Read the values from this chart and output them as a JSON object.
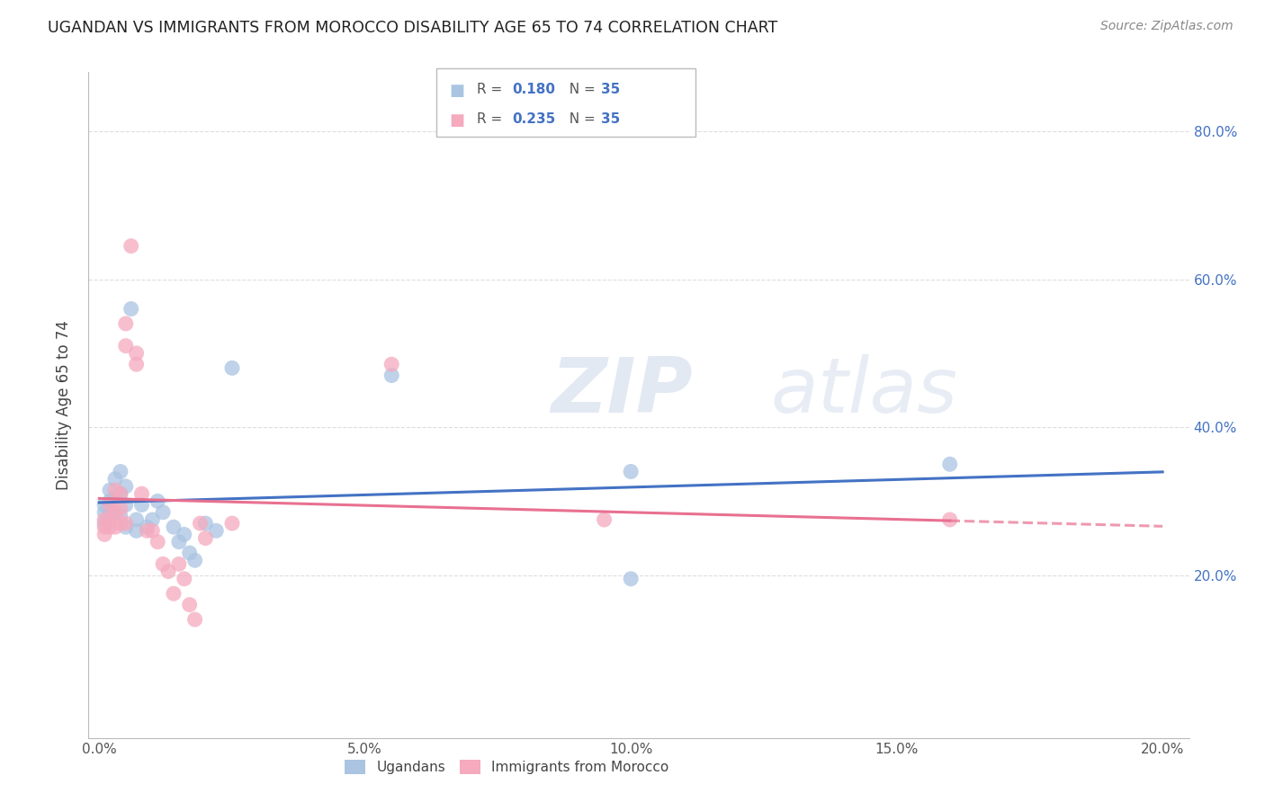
{
  "title": "UGANDAN VS IMMIGRANTS FROM MOROCCO DISABILITY AGE 65 TO 74 CORRELATION CHART",
  "source": "Source: ZipAtlas.com",
  "ylabel": "Disability Age 65 to 74",
  "xlim": [
    -0.002,
    0.205
  ],
  "ylim": [
    -0.02,
    0.88
  ],
  "x_tick_labels": [
    "0.0%",
    "",
    "",
    "",
    "",
    "5.0%",
    "",
    "",
    "",
    "",
    "10.0%",
    "",
    "",
    "",
    "",
    "15.0%",
    "",
    "",
    "",
    "",
    "20.0%"
  ],
  "x_tick_positions": [
    0.0,
    0.01,
    0.02,
    0.03,
    0.04,
    0.05,
    0.06,
    0.07,
    0.08,
    0.09,
    0.1,
    0.11,
    0.12,
    0.13,
    0.14,
    0.15,
    0.16,
    0.17,
    0.18,
    0.19,
    0.2
  ],
  "y_tick_labels": [
    "20.0%",
    "40.0%",
    "60.0%",
    "80.0%"
  ],
  "y_tick_positions": [
    0.2,
    0.4,
    0.6,
    0.8
  ],
  "ugandan_R": "0.180",
  "ugandan_N": "35",
  "morocco_R": "0.235",
  "morocco_N": "35",
  "ugandan_color": "#aac4e2",
  "morocco_color": "#f5aabe",
  "ugandan_line_color": "#4472c4",
  "morocco_line_color": "#e87090",
  "watermark_part1": "ZIP",
  "watermark_part2": "atlas",
  "ugandan_x": [
    0.001,
    0.001,
    0.001,
    0.002,
    0.002,
    0.002,
    0.003,
    0.003,
    0.003,
    0.004,
    0.004,
    0.004,
    0.005,
    0.005,
    0.005,
    0.006,
    0.007,
    0.007,
    0.008,
    0.009,
    0.01,
    0.011,
    0.012,
    0.014,
    0.015,
    0.016,
    0.017,
    0.018,
    0.02,
    0.022,
    0.025,
    0.055,
    0.1,
    0.16,
    0.1
  ],
  "ugandan_y": [
    0.295,
    0.285,
    0.27,
    0.315,
    0.3,
    0.285,
    0.33,
    0.305,
    0.285,
    0.34,
    0.31,
    0.28,
    0.32,
    0.295,
    0.265,
    0.56,
    0.275,
    0.26,
    0.295,
    0.265,
    0.275,
    0.3,
    0.285,
    0.265,
    0.245,
    0.255,
    0.23,
    0.22,
    0.27,
    0.26,
    0.48,
    0.47,
    0.195,
    0.35,
    0.34
  ],
  "morocco_x": [
    0.001,
    0.001,
    0.001,
    0.002,
    0.002,
    0.002,
    0.003,
    0.003,
    0.003,
    0.004,
    0.004,
    0.004,
    0.005,
    0.005,
    0.005,
    0.006,
    0.007,
    0.007,
    0.008,
    0.009,
    0.01,
    0.011,
    0.012,
    0.013,
    0.014,
    0.015,
    0.016,
    0.017,
    0.018,
    0.019,
    0.02,
    0.025,
    0.055,
    0.095,
    0.16
  ],
  "morocco_y": [
    0.275,
    0.265,
    0.255,
    0.295,
    0.275,
    0.265,
    0.315,
    0.285,
    0.265,
    0.31,
    0.29,
    0.27,
    0.54,
    0.51,
    0.27,
    0.645,
    0.5,
    0.485,
    0.31,
    0.26,
    0.26,
    0.245,
    0.215,
    0.205,
    0.175,
    0.215,
    0.195,
    0.16,
    0.14,
    0.27,
    0.25,
    0.27,
    0.485,
    0.275,
    0.275
  ],
  "legend_label_blue": "Ugandans",
  "legend_label_pink": "Immigrants from Morocco"
}
